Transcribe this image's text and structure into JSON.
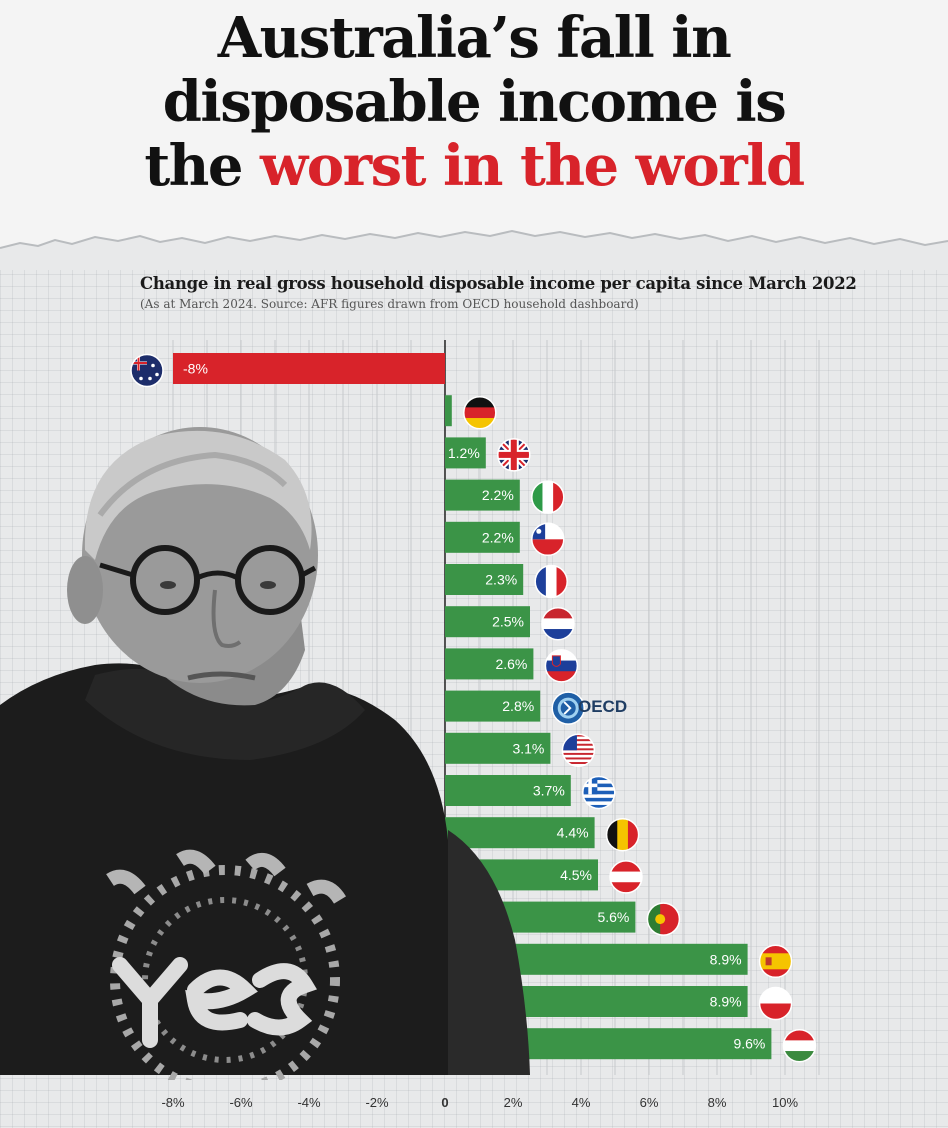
{
  "headline": {
    "line1": "Australia’s fall in",
    "line2": "disposable income is",
    "line3_plain": "the ",
    "line3_accent": "worst in the world"
  },
  "subtitle": "Change in real gross household disposable income per capita since March 2022",
  "source": "(As at March 2024. Source: AFR figures drawn from OECD household dashboard)",
  "oecd_label": "OECD",
  "colors": {
    "negative": "#d8232a",
    "positive": "#3b9447",
    "accent": "#d8232a"
  },
  "chart_data": {
    "type": "bar",
    "orientation": "horizontal",
    "title": "Change in real gross household disposable income per capita since March 2022",
    "xlim": [
      -8.5,
      11
    ],
    "x_ticks": [
      "-8%",
      "-6%",
      "-4%",
      "-2%",
      "0",
      "2%",
      "4%",
      "6%",
      "8%",
      "10%"
    ],
    "x_tick_values": [
      -8,
      -6,
      -4,
      -2,
      0,
      2,
      4,
      6,
      8,
      10
    ],
    "grid": true,
    "categories": [
      "Australia",
      "Germany",
      "United Kingdom",
      "Italy",
      "Chile",
      "France",
      "Netherlands",
      "Slovenia",
      "OECD",
      "United States",
      "Greece",
      "Belgium",
      "Austria",
      "Portugal",
      "Spain",
      "Poland",
      "Hungary"
    ],
    "values": [
      -8,
      0.2,
      1.2,
      2.2,
      2.2,
      2.3,
      2.5,
      2.6,
      2.8,
      3.1,
      3.7,
      4.4,
      4.5,
      5.6,
      8.9,
      8.9,
      9.6
    ],
    "labels": [
      "-8%",
      "",
      "1.2%",
      "2.2%",
      "2.2%",
      "2.3%",
      "2.5%",
      "2.6%",
      "2.8%",
      "3.1%",
      "3.7%",
      "4.4%",
      "4.5%",
      "5.6%",
      "8.9%",
      "8.9%",
      "9.6%"
    ],
    "flag_icons": [
      "australia-flag-icon",
      "germany-flag-icon",
      "uk-flag-icon",
      "italy-flag-icon",
      "chile-flag-icon",
      "france-flag-icon",
      "netherlands-flag-icon",
      "slovenia-flag-icon",
      "oecd-logo-icon",
      "usa-flag-icon",
      "greece-flag-icon",
      "belgium-flag-icon",
      "austria-flag-icon",
      "portugal-flag-icon",
      "spain-flag-icon",
      "poland-flag-icon",
      "hungary-flag-icon"
    ]
  }
}
